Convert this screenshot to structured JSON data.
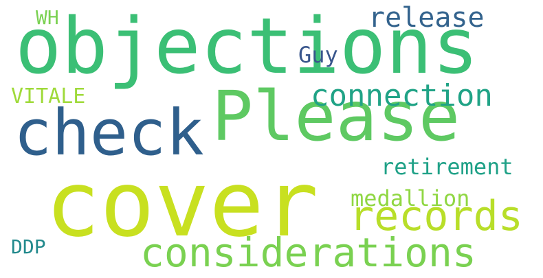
{
  "words": [
    {
      "text": "objections",
      "color": "#3bbf75"
    },
    {
      "text": "Please",
      "color": "#5ec962"
    },
    {
      "text": "cover",
      "color": "#c8e020"
    },
    {
      "text": "check",
      "color": "#2f5f8c"
    },
    {
      "text": "records",
      "color": "#b8de29"
    },
    {
      "text": "considerations",
      "color": "#7ad151"
    },
    {
      "text": "connection",
      "color": "#20a386"
    },
    {
      "text": "release",
      "color": "#33638d"
    },
    {
      "text": "retirement",
      "color": "#1fa187"
    },
    {
      "text": "medallion",
      "color": "#90d743"
    },
    {
      "text": "Guy",
      "color": "#39568c"
    },
    {
      "text": "VITALE",
      "color": "#9fda3a"
    },
    {
      "text": "WH",
      "color": "#7ad151"
    },
    {
      "text": "DDP",
      "color": "#238a8d"
    }
  ]
}
